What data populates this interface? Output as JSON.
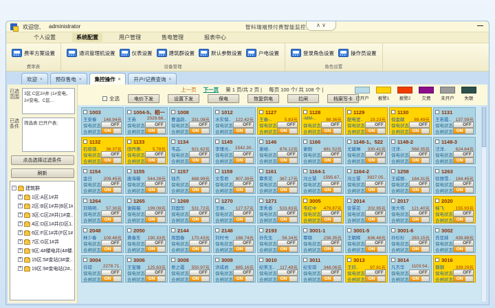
{
  "window": {
    "welcome_prefix": "欢迎您,",
    "username": "administrator",
    "title": "智科瑞福预付费智能监控管理系统",
    "collapse_up": "∧",
    "collapse_down": "∨",
    "minimize": "—"
  },
  "menu": {
    "items": [
      {
        "label": "个人设置",
        "active": false
      },
      {
        "label": "系统配置",
        "active": true
      },
      {
        "label": "用户管理",
        "active": false
      },
      {
        "label": "售电管理",
        "active": false
      },
      {
        "label": "报表中心",
        "active": false
      }
    ]
  },
  "ribbon": {
    "groups": [
      {
        "label": "费率表",
        "buttons": [
          "费率方案设置"
        ]
      },
      {
        "label": "设备管理",
        "buttons": [
          "通讯管理机设置",
          "仪表设置",
          "建筑群设置",
          "默认参数设置",
          "户电设置"
        ]
      },
      {
        "label": "角色设置",
        "buttons": [
          "登录角色设置",
          "操作员设置"
        ]
      }
    ]
  },
  "tabs": [
    {
      "label": "欢迎",
      "active": false
    },
    {
      "label": "预存售电",
      "active": false
    },
    {
      "label": "集控操作",
      "active": true
    },
    {
      "label": "开户/记费查询",
      "active": false
    }
  ],
  "sidebar": {
    "range_label": "已选范围",
    "range_value": "3区:C区2#井 (1#变电、2#变电、C区...",
    "filter_label": "已选条件",
    "filter_value": "筛选表:已开户表;",
    "filter_button": "点击选择过滤条件",
    "refresh_button": "刷新",
    "tree_root": "建筑群",
    "tree_items": [
      "1区:A区1#井",
      "2区:B区1#井(B区1#...",
      "3区:C区2#井(1#变...",
      "4区:D区1#井(D区1...",
      "6区:F区1#井(F区1#...",
      "7区:G区1#井",
      "9区:4#楼电井(4#楼...",
      "15区:5#变站(3#变...",
      "19区:9#变电站(2#..."
    ]
  },
  "pagination": {
    "prev": "上一页",
    "next": "下一页",
    "page_info": "第 1 页/共 2 页 |",
    "per_info": "每页 100 个/ 共 108 个 |"
  },
  "toolbar": {
    "select_all": "全选",
    "buttons": [
      "电价下发",
      "设置下发",
      "保电",
      "恢复供电",
      "拉闸",
      "档案写卡"
    ]
  },
  "legend": {
    "items": [
      {
        "label": "已开户",
        "color": "#b7dbe9"
      },
      {
        "label": "报警1",
        "color": "#ffd100"
      },
      {
        "label": "报警2",
        "color": "#f03c00"
      },
      {
        "label": "欠费",
        "color": "#8b0f8b"
      },
      {
        "label": "未开户",
        "color": "#9b9b9b"
      },
      {
        "label": "失联",
        "color": "#2c4f4b"
      }
    ]
  },
  "grid": {
    "supply_label": "保电状态",
    "supply_value": "OFF",
    "gate_label": "合闸状态",
    "gate_value": "ON",
    "cards": [
      {
        "no": "1003",
        "name": "王安春",
        "amt": "148.94元",
        "alarm": false
      },
      {
        "no": "1004-5、相一",
        "name": "王英",
        "amt": "2029.66..",
        "alarm": false
      },
      {
        "no": "1008",
        "name": "曹温韵..",
        "amt": "331.08元",
        "alarm": false
      },
      {
        "no": "1012",
        "name": "水实保..",
        "amt": "122.42元",
        "alarm": false
      },
      {
        "no": "1127",
        "name": "王春-..",
        "amt": "5.83元",
        "alarm": true
      },
      {
        "no": "1128",
        "name": "-MM-..",
        "amt": "88.36元",
        "alarm": true
      },
      {
        "no": "1129",
        "name": "配电室..",
        "amt": "19.23元",
        "alarm": true
      },
      {
        "no": "1130",
        "name": "倪金献",
        "amt": "89.49元",
        "alarm": true
      },
      {
        "no": "1131",
        "name": "王若霞..",
        "amt": "137.59元",
        "alarm": false
      },
      {
        "no": "1132",
        "name": "石俊锁..",
        "amt": "36.37元",
        "alarm": true
      },
      {
        "no": "1133",
        "name": "田丹惠..",
        "amt": "5.78元",
        "alarm": true
      },
      {
        "no": "1134",
        "name": "韦品..",
        "amt": "921.62元",
        "alarm": false
      },
      {
        "no": "1145",
        "name": "李瑾光..",
        "amt": "1542.30..",
        "alarm": false
      },
      {
        "no": "1146",
        "name": "谢维..",
        "amt": "876.12元",
        "alarm": false
      },
      {
        "no": "1166",
        "name": "谢刚",
        "amt": "681.52元",
        "alarm": false
      },
      {
        "no": "1148-1、522",
        "name": "尤毓琳",
        "amt": "330.41元",
        "alarm": false
      },
      {
        "no": "1148-2",
        "name": "汪洋..",
        "amt": "568.35元",
        "alarm": false
      },
      {
        "no": "1148-3",
        "name": "汪洋..",
        "amt": "624.64元",
        "alarm": false
      },
      {
        "no": "1154",
        "name": "金日",
        "amt": "209.45元",
        "alarm": false
      },
      {
        "no": "1155",
        "name": "唐海薇",
        "amt": "544.28元",
        "alarm": false
      },
      {
        "no": "1157",
        "name": "钱杰",
        "amt": "688.99元",
        "alarm": false
      },
      {
        "no": "1159",
        "name": "文雪君",
        "amt": "907.39元",
        "alarm": false
      },
      {
        "no": "1161",
        "name": "覃美花",
        "amt": "367.17元",
        "alarm": false
      },
      {
        "no": "1164-1",
        "name": "冯立慧",
        "amt": "1595.67..",
        "alarm": false
      },
      {
        "no": "1164-2",
        "name": "冯立慧",
        "amt": "3927.05..",
        "alarm": false
      },
      {
        "no": "1258",
        "name": "王威丽..",
        "amt": "184.31元",
        "alarm": false
      },
      {
        "no": "1263",
        "name": "徐丽雪..",
        "amt": "184.45元",
        "alarm": false
      },
      {
        "no": "1264",
        "name": "刘晓明..",
        "amt": "57.30元",
        "alarm": false
      },
      {
        "no": "1265",
        "name": "谢薇薇",
        "amt": "199.09元",
        "alarm": false
      },
      {
        "no": "1269",
        "name": "刘国华",
        "amt": "531.72元",
        "alarm": false
      },
      {
        "no": "1270",
        "name": "王琳..",
        "amt": "127.57元",
        "alarm": false
      },
      {
        "no": "1271",
        "name": "李秀香",
        "amt": "533.83元",
        "alarm": false
      },
      {
        "no": "3005",
        "name": "韦红中",
        "amt": "479.87元",
        "alarm": true
      },
      {
        "no": "2014",
        "name": "安慧花",
        "amt": "202.95元",
        "alarm": false
      },
      {
        "no": "2017",
        "name": "张大伟",
        "amt": "121.40元",
        "alarm": false
      },
      {
        "no": "2020",
        "name": "桂飞",
        "amt": "155.93元",
        "alarm": true
      },
      {
        "no": "2048",
        "name": "林少春",
        "amt": "109.48元",
        "alarm": false
      },
      {
        "no": "2050",
        "name": "黄春东",
        "amt": "190.33元",
        "alarm": false
      },
      {
        "no": "2144",
        "name": "周国春",
        "amt": "170.43元",
        "alarm": false
      },
      {
        "no": "2148",
        "name": "刘时书",
        "amt": "186.74元",
        "alarm": false
      },
      {
        "no": "2193",
        "name": "孙先生",
        "amt": "58.34元",
        "alarm": false
      },
      {
        "no": "3001-1",
        "name": "覃璐",
        "amt": "238.35元",
        "alarm": false
      },
      {
        "no": "3001-5",
        "name": "王朝辉",
        "amt": "636.48元",
        "alarm": false
      },
      {
        "no": "3001-6",
        "name": "孙杉杉",
        "amt": "283.15元",
        "alarm": false
      },
      {
        "no": "3002",
        "name": "肖亚妹",
        "amt": "439.88元",
        "alarm": false
      },
      {
        "no": "3004",
        "name": "许琼",
        "amt": "2278.71..",
        "alarm": false
      },
      {
        "no": "3006",
        "name": "王宝珊",
        "amt": "125.83元",
        "alarm": false
      },
      {
        "no": "3008",
        "name": "吴之霞",
        "amt": "550.97元",
        "alarm": false
      },
      {
        "no": "3009",
        "name": "洪成君",
        "amt": "885.16元",
        "alarm": false
      },
      {
        "no": "3010",
        "name": "纪美玉..",
        "amt": "117.49元",
        "alarm": false
      },
      {
        "no": "3011",
        "name": "纪安琪",
        "amt": "348.06元",
        "alarm": false
      },
      {
        "no": "3013",
        "name": "王欣..",
        "amt": "97.81元",
        "alarm": true
      },
      {
        "no": "3014",
        "name": "凡杰华",
        "amt": "1103.54..",
        "alarm": false
      },
      {
        "no": "3016",
        "name": "钢钢",
        "amt": "339.29元",
        "alarm": true
      }
    ]
  }
}
